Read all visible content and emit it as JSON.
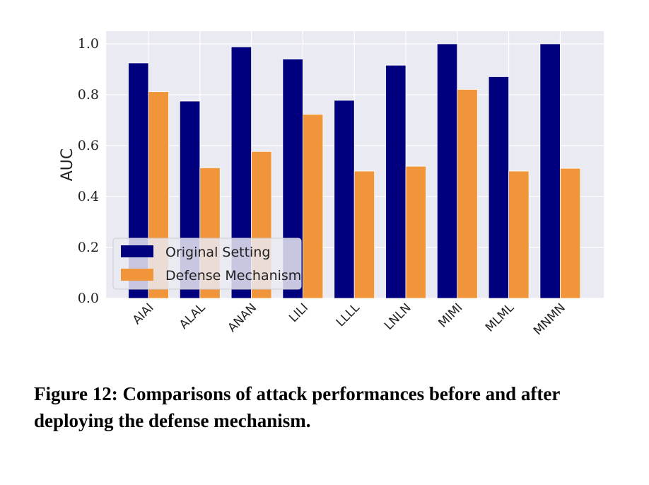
{
  "chart_data": {
    "type": "bar",
    "categories": [
      "AIAI",
      "ALAL",
      "ANAN",
      "LILI",
      "LLLL",
      "LNLN",
      "MIMI",
      "MLML",
      "MNMN"
    ],
    "series": [
      {
        "name": "Original Setting",
        "values": [
          0.925,
          0.775,
          0.988,
          0.94,
          0.778,
          0.916,
          1.0,
          0.871,
          1.0
        ],
        "color": "#00007f"
      },
      {
        "name": "Defense Mechanism",
        "values": [
          0.812,
          0.513,
          0.577,
          0.723,
          0.5,
          0.519,
          0.821,
          0.5,
          0.511
        ],
        "color": "#f0953a"
      }
    ],
    "ylabel": "AUC",
    "xlabel": "",
    "ylim": [
      0,
      1.05
    ],
    "yticks": [
      "0.0",
      "0.2",
      "0.4",
      "0.6",
      "0.8",
      "1.0"
    ],
    "grid": true,
    "legend_position": "lower-left",
    "background_color": "#eaeaf2"
  },
  "caption": "Figure 12: Comparisons of attack performances before and after deploying the defense mechanism."
}
